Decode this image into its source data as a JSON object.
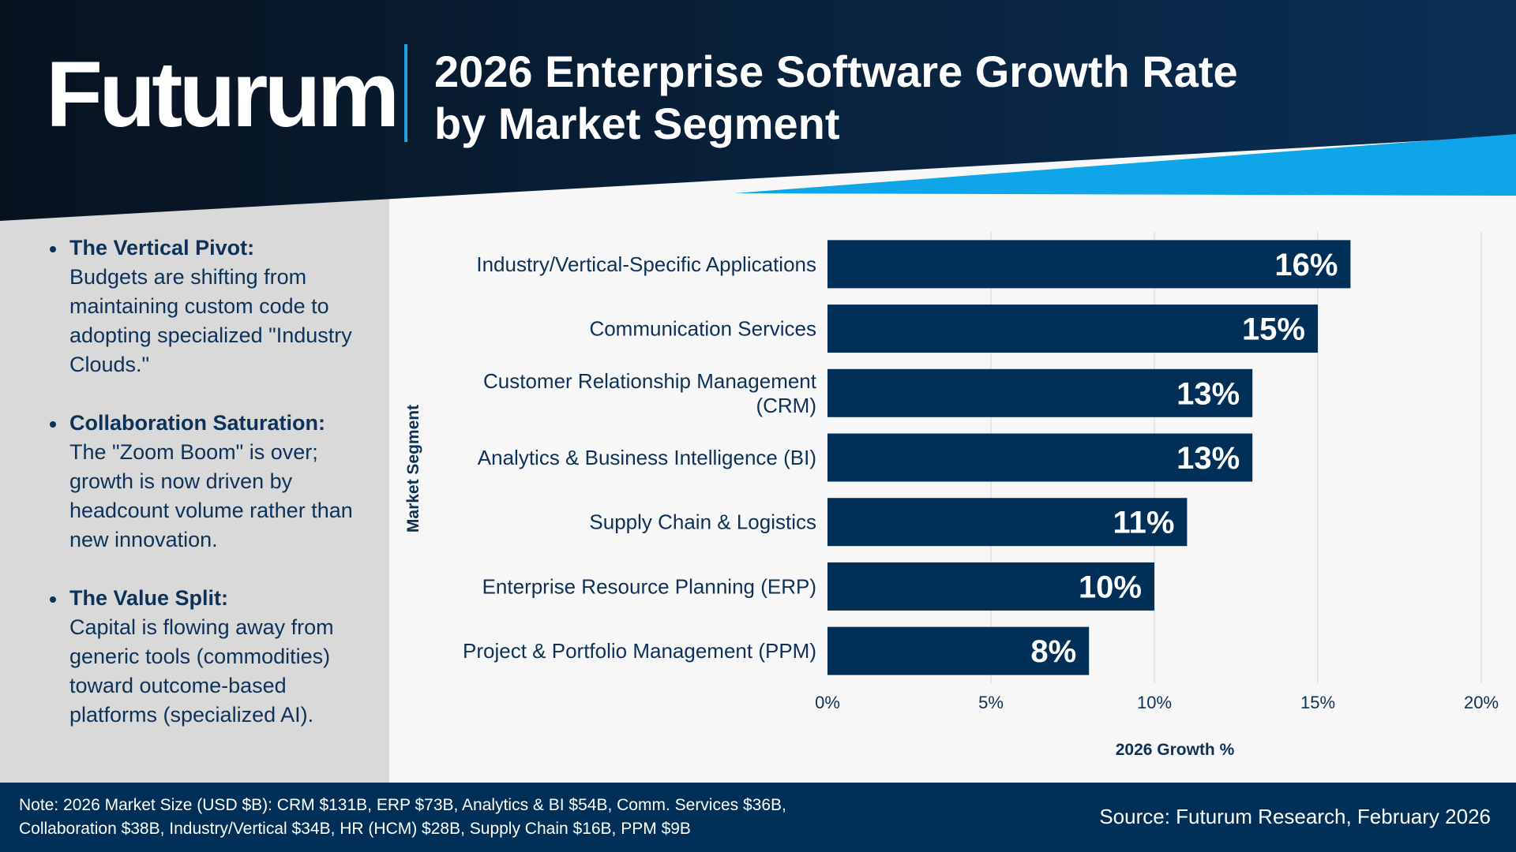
{
  "header": {
    "logo": "Futurum",
    "title_line1": "2026 Enterprise Software Growth Rate",
    "title_line2": "by Market Segment"
  },
  "bullets": [
    {
      "title": "The Vertical Pivot:",
      "text": "Budgets are shifting from maintaining custom code to adopting specialized \"Industry Clouds.\""
    },
    {
      "title": "Collaboration Saturation:",
      "text": "The \"Zoom Boom\" is over; growth is now driven by headcount volume rather than new innovation."
    },
    {
      "title": "The Value Split:",
      "text": "Capital is flowing away from generic tools (commodities) toward outcome-based platforms (specialized AI)."
    }
  ],
  "chart_data": {
    "type": "bar",
    "orientation": "horizontal",
    "categories": [
      "Industry/Vertical-Specific Applications",
      "Communication Services",
      "Customer Relationship Management (CRM)",
      "Analytics & Business Intelligence (BI)",
      "Supply Chain & Logistics",
      "Enterprise Resource Planning (ERP)",
      "Project & Portfolio Management (PPM)"
    ],
    "values": [
      16,
      15,
      13,
      13,
      11,
      10,
      8
    ],
    "data_labels": [
      "16%",
      "15%",
      "13%",
      "13%",
      "11%",
      "10%",
      "8%"
    ],
    "xlabel": "2026 Growth %",
    "ylabel": "Market Segment",
    "xlim": [
      0,
      20
    ],
    "ticks": [
      0,
      5,
      10,
      15,
      20
    ],
    "tick_labels": [
      "0%",
      "5%",
      "10%",
      "15%",
      "20%"
    ],
    "grid": "vertical",
    "bar_color": "#003057"
  },
  "footer": {
    "note_line1": "Note: 2026 Market Size (USD $B): CRM $131B, ERP $73B, Analytics & BI $54B, Comm. Services $36B,",
    "note_line2": "Collaboration $38B, Industry/Vertical $34B, HR (HCM) $28B, Supply Chain $16B, PPM $9B",
    "source": "Source: Futurum Research, February 2026"
  },
  "colors": {
    "header_dark": "#0a1a2e",
    "accent_blue": "#0ea5e9",
    "navy": "#003057"
  }
}
